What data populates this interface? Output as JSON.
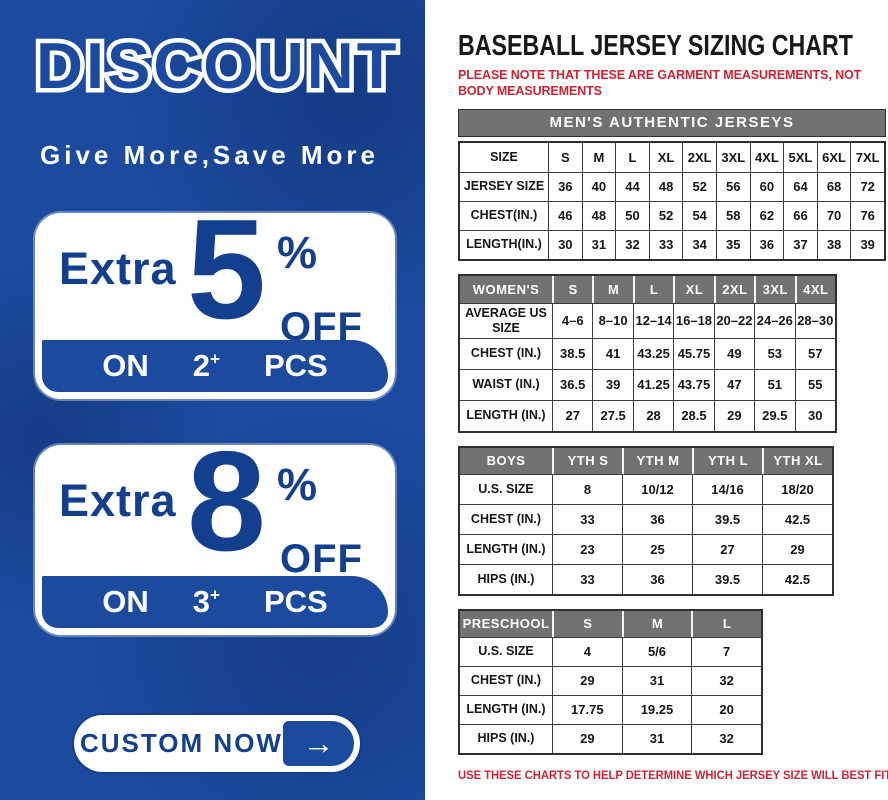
{
  "colors": {
    "panel_blue": "#1b4a9e",
    "dark_blue_text": "#123f8e",
    "header_gray": "#727272",
    "note_red": "#cf2333"
  },
  "left_panel": {
    "title": "DISCOUNT",
    "tagline": "Give More,Save More",
    "offers": [
      {
        "prefix": "Extra",
        "amount": "5",
        "percent_sign": "%",
        "off_label": "OFF",
        "on_label": "ON",
        "quantity": "2",
        "plus_sign": "+",
        "pcs_label": "PCS"
      },
      {
        "prefix": "Extra",
        "amount": "8",
        "percent_sign": "%",
        "off_label": "OFF",
        "on_label": "ON",
        "quantity": "3",
        "plus_sign": "+",
        "pcs_label": "PCS"
      }
    ],
    "custom_button": {
      "label": "CUSTOM NOW",
      "arrow_icon": "→"
    }
  },
  "right_panel": {
    "title": "BASEBALL JERSEY SIZING CHART",
    "top_note": "PLEASE NOTE THAT THESE ARE GARMENT MEASUREMENTS, NOT BODY MEASUREMENTS",
    "bottom_note": "USE THESE CHARTS TO HELP DETERMINE WHICH JERSEY SIZE WILL BEST FIT YOU.",
    "mens_table": {
      "banner": "MEN'S AUTHENTIC JERSEYS",
      "rows": [
        [
          "SIZE",
          "S",
          "M",
          "L",
          "XL",
          "2XL",
          "3XL",
          "4XL",
          "5XL",
          "6XL",
          "7XL"
        ],
        [
          "JERSEY SIZE",
          "36",
          "40",
          "44",
          "48",
          "52",
          "56",
          "60",
          "64",
          "68",
          "72"
        ],
        [
          "CHEST(IN.)",
          "46",
          "48",
          "50",
          "52",
          "54",
          "58",
          "62",
          "66",
          "70",
          "76"
        ],
        [
          "LENGTH(IN.)",
          "30",
          "31",
          "32",
          "33",
          "34",
          "35",
          "36",
          "37",
          "38",
          "39"
        ]
      ]
    },
    "womens_table": {
      "header": [
        "WOMEN'S",
        "S",
        "M",
        "L",
        "XL",
        "2XL",
        "3XL",
        "4XL"
      ],
      "rows": [
        [
          "AVERAGE US SIZE",
          "4–6",
          "8–10",
          "12–14",
          "16–18",
          "20–22",
          "24–26",
          "28–30"
        ],
        [
          "CHEST (IN.)",
          "38.5",
          "41",
          "43.25",
          "45.75",
          "49",
          "53",
          "57"
        ],
        [
          "WAIST (IN.)",
          "36.5",
          "39",
          "41.25",
          "43.75",
          "47",
          "51",
          "55"
        ],
        [
          "LENGTH (IN.)",
          "27",
          "27.5",
          "28",
          "28.5",
          "29",
          "29.5",
          "30"
        ]
      ]
    },
    "boys_table": {
      "header": [
        "BOYS",
        "YTH S",
        "YTH M",
        "YTH L",
        "YTH XL"
      ],
      "rows": [
        [
          "U.S. SIZE",
          "8",
          "10/12",
          "14/16",
          "18/20"
        ],
        [
          "CHEST (IN.)",
          "33",
          "36",
          "39.5",
          "42.5"
        ],
        [
          "LENGTH (IN.)",
          "23",
          "25",
          "27",
          "29"
        ],
        [
          "HIPS (IN.)",
          "33",
          "36",
          "39.5",
          "42.5"
        ]
      ]
    },
    "preschool_table": {
      "header": [
        "PRESCHOOL",
        "S",
        "M",
        "L"
      ],
      "rows": [
        [
          "U.S. SIZE",
          "4",
          "5/6",
          "7"
        ],
        [
          "CHEST (IN.)",
          "29",
          "31",
          "32"
        ],
        [
          "LENGTH (IN.)",
          "17.75",
          "19.25",
          "20"
        ],
        [
          "HIPS (IN.)",
          "29",
          "31",
          "32"
        ]
      ]
    }
  }
}
